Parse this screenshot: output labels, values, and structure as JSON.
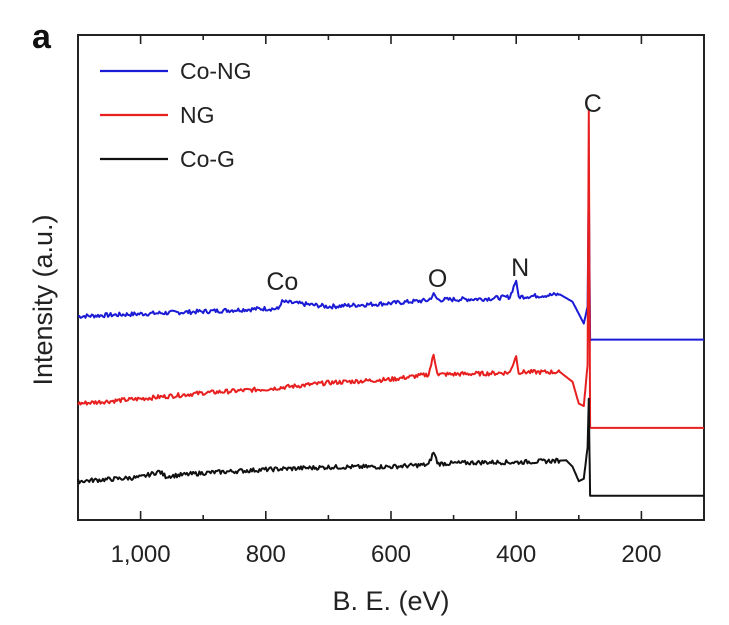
{
  "chart_data": {
    "type": "line",
    "panel_label": "a",
    "title": "",
    "xlabel": "B. E. (eV)",
    "ylabel": "Intensity (a.u.)",
    "x_reversed": true,
    "xlim": [
      1100,
      100
    ],
    "ylim": [
      0,
      100
    ],
    "x_ticks": [
      1000,
      800,
      600,
      400,
      200
    ],
    "x_tick_labels": [
      "1,000",
      "800",
      "600",
      "400",
      "200"
    ],
    "y_ticks_shown": false,
    "legend_position": "top-left",
    "series": [
      {
        "name": "Co-NG",
        "color": "#1b1bd6",
        "x": [
          1100,
          1000,
          900,
          800,
          780,
          775,
          700,
          600,
          540,
          532,
          525,
          450,
          410,
          400,
          397,
          330,
          310,
          300,
          292,
          286,
          284,
          282,
          280,
          200,
          100
        ],
        "y": [
          42.0,
          42.5,
          43.0,
          43.6,
          43.5,
          45.0,
          44.0,
          44.7,
          45.3,
          46.5,
          45.4,
          45.6,
          46.0,
          49.5,
          46.0,
          46.5,
          45.0,
          42.5,
          40.5,
          44.0,
          71.0,
          37.0,
          37.2,
          37.2,
          37.2
        ],
        "peaks": [
          {
            "label": "Co",
            "x": 780
          },
          {
            "label": "O",
            "x": 532
          },
          {
            "label": "N",
            "x": 400
          },
          {
            "label": "C",
            "x": 284
          }
        ]
      },
      {
        "name": "NG",
        "color": "#e81f1f",
        "x": [
          1100,
          1000,
          900,
          800,
          700,
          600,
          540,
          532,
          525,
          450,
          410,
          400,
          397,
          330,
          310,
          300,
          292,
          286,
          284,
          282,
          280,
          200,
          100
        ],
        "y": [
          24.0,
          25.0,
          26.2,
          27.0,
          28.3,
          29.0,
          30.0,
          34.0,
          30.0,
          30.2,
          30.4,
          34.0,
          30.5,
          30.5,
          28.5,
          24.0,
          23.5,
          32.0,
          84.5,
          19.0,
          19.0,
          19.0,
          19.0
        ]
      },
      {
        "name": "Co-G",
        "color": "#111111",
        "x": [
          1100,
          1000,
          970,
          960,
          900,
          800,
          700,
          600,
          540,
          532,
          525,
          450,
          400,
          320,
          310,
          300,
          292,
          286,
          284,
          282,
          280,
          200,
          100
        ],
        "y": [
          8.0,
          8.8,
          10.0,
          9.0,
          9.7,
          10.4,
          10.9,
          11.0,
          11.4,
          14.0,
          11.6,
          11.9,
          11.9,
          12.3,
          11.0,
          8.0,
          8.5,
          15.0,
          25.0,
          5.0,
          5.0,
          5.0,
          5.0
        ]
      }
    ]
  }
}
